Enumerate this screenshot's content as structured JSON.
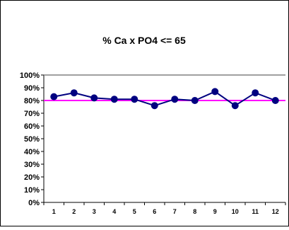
{
  "chart_data": {
    "type": "line",
    "title": "% Ca x PO4 <= 65",
    "x": [
      "1",
      "2",
      "3",
      "4",
      "5",
      "6",
      "7",
      "8",
      "9",
      "10",
      "11",
      "12"
    ],
    "ylim": [
      0,
      1
    ],
    "yticks": [
      "0%",
      "10%",
      "20%",
      "30%",
      "40%",
      "50%",
      "60%",
      "70%",
      "80%",
      "90%",
      "100%"
    ],
    "series": [
      {
        "values": [
          0.83,
          0.86,
          0.82,
          0.81,
          0.81,
          0.76,
          0.81,
          0.8,
          0.87,
          0.76,
          0.86,
          0.8
        ],
        "color": "#000080"
      }
    ],
    "reference_lines": [
      {
        "value": 0.8,
        "color": "#ff00ff"
      }
    ],
    "grid": {
      "y_major_at_top": true
    },
    "legend": "none"
  }
}
